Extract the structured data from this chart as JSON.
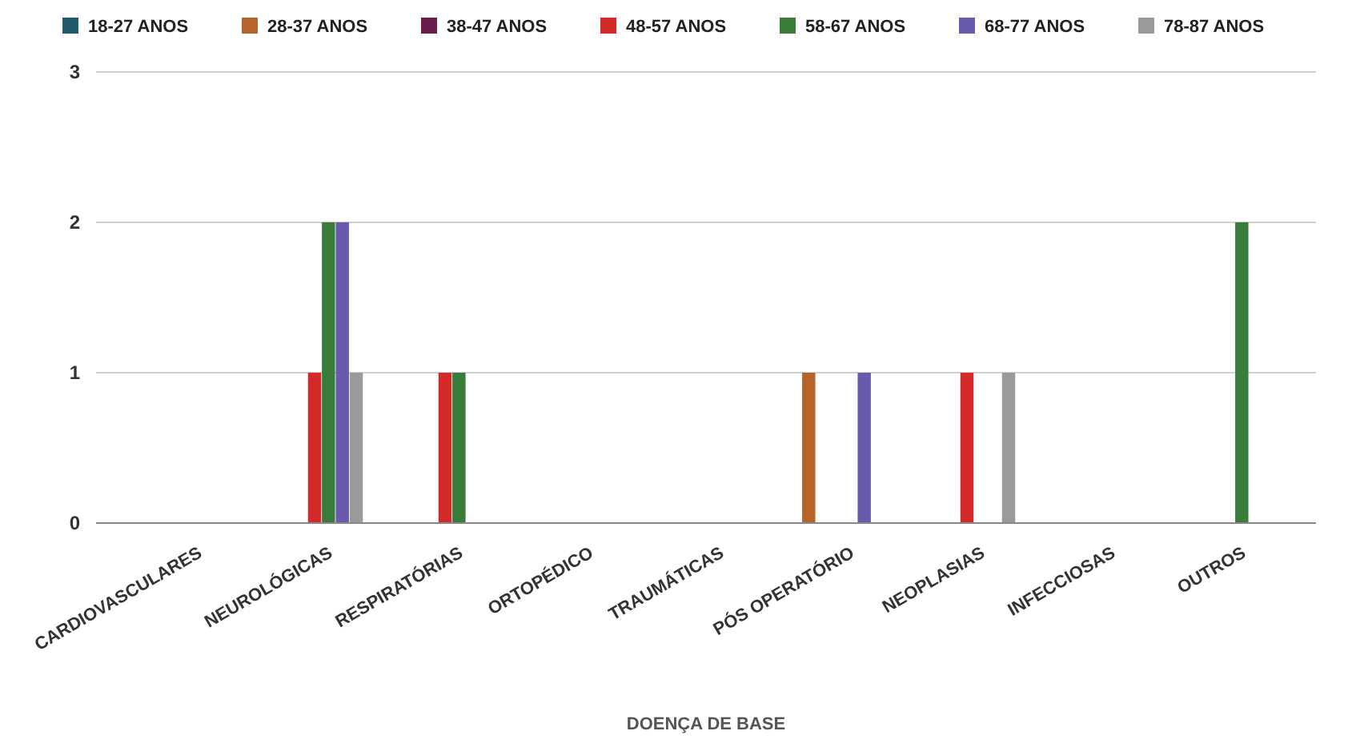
{
  "chart_data": {
    "type": "bar",
    "xlabel": "DOENÇA DE BASE",
    "categories": [
      "CARDIOVASCULARES",
      "NEUROLÓGICAS",
      "RESPIRATÓRIAS",
      "ORTOPÉDICO",
      "TRAUMÁTICAS",
      "PÓS OPERATÓRIO",
      "NEOPLASIAS",
      "INFECCIOSAS",
      "OUTROS"
    ],
    "series": [
      {
        "name": "18-27 ANOS",
        "color": "#1f5c6b",
        "values": [
          0,
          0,
          0,
          0,
          0,
          0,
          0,
          0,
          0
        ]
      },
      {
        "name": "28-37 ANOS",
        "color": "#b5652a",
        "values": [
          0,
          0,
          0,
          0,
          0,
          1,
          0,
          0,
          0
        ]
      },
      {
        "name": "38-47 ANOS",
        "color": "#6b1c4a",
        "values": [
          0,
          0,
          0,
          0,
          0,
          0,
          0,
          0,
          0
        ]
      },
      {
        "name": "48-57 ANOS",
        "color": "#d42a2a",
        "values": [
          0,
          1,
          1,
          0,
          0,
          0,
          1,
          0,
          0
        ]
      },
      {
        "name": "58-67 ANOS",
        "color": "#3a7d3a",
        "values": [
          0,
          2,
          1,
          0,
          0,
          0,
          0,
          0,
          2
        ]
      },
      {
        "name": "68-77 ANOS",
        "color": "#6a5aad",
        "values": [
          0,
          2,
          0,
          0,
          0,
          1,
          0,
          0,
          0
        ]
      },
      {
        "name": "78-87 ANOS",
        "color": "#9a9a9a",
        "values": [
          0,
          1,
          0,
          0,
          0,
          0,
          1,
          0,
          0
        ]
      }
    ],
    "ylim": [
      0,
      3
    ],
    "yticks": [
      0,
      1,
      2,
      3
    ],
    "grid": "y",
    "legend": "top"
  }
}
